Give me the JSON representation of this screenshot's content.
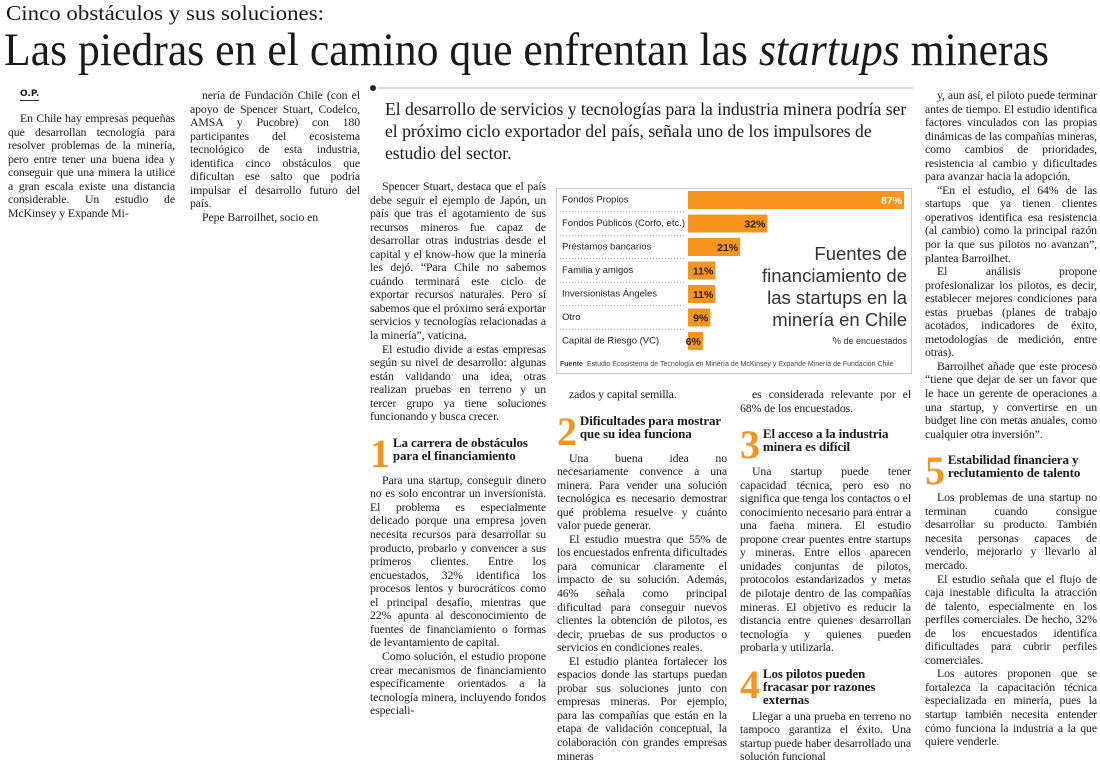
{
  "header": {
    "kicker": "Cinco obstáculos y sus soluciones:",
    "headline": {
      "start": "Las piedras en el camino que enfrentan las ",
      "emphasis": "startups",
      "end": " mineras"
    },
    "byline": "O.P.",
    "deck": "El desarrollo de servicios y tecnologías para la industria minera podría ser el próximo ciclo exportador del país, señala uno de los impulsores de estudio del sector."
  },
  "columns": [
    [
      {
        "text": "En Chile hay empresas pequeñas que desarrollan tecnología para resolver problemas de la minería, pero entre tener una buena idea y conseguir que una minera la utilice a gran escala existe una distancia considerable. Un estudio de McKinsey y Expande Mi-"
      }
    ],
    [
      {
        "text": "nería de Fundación Chile (con el apoyo de Spencer Stuart, Codelco, AMSA y Pucobre) con 180 participantes del ecosistema tecnológico de esta industria, identifica cinco obstáculos que dificultan ese salto que podría impulsar el desarrollo futuro del país."
      },
      {
        "text": "Pepe Barroilhet, socio en"
      }
    ],
    [
      {
        "text": "Spencer Stuart, destaca que el país debe seguir el ejemplo de Japón, un país que tras el agotamiento de sus recursos mineros fue capaz de desarrollar otras industrias desde el capital y el know-how que la minería les dejó. “Para Chile no sabemos cuándo terminará este ciclo de exportar recursos naturales. Pero sí sabemos que el próximo será exportar servicios y tecnologías relacionadas a la minería”, vaticina."
      },
      {
        "text": "El estudio divide a estas empresas según su nivel de desarrollo: algunas están validando una idea, otras realizan pruebas en terreno y un tercer grupo ya tiene soluciones funcionando y busca crecer."
      },
      {
        "number": "1",
        "heading": "La carrera de obstáculos para el financiamiento"
      },
      {
        "text": "Para una startup, conseguir dinero no es solo encontrar un inversionista. El problema es especialmente delicado porque una empresa joven necesita recursos para desarrollar su producto, probarlo y convencer a sus primeros clientes. Entre los encuestados, 32% identifica los procesos lentos y burocráticos como el principal desafío, mientras que 22% apunta al desconocimiento de fuentes de financiamiento o formas de levantamiento de capital."
      },
      {
        "text": "Como solución, el estudio propone crear mecanismos de financiamiento específicamente orientados a la tecnología minera, incluyendo fondos especiali-"
      }
    ],
    [
      {
        "text": "zados y capital semilla."
      },
      {
        "number": "2",
        "heading": "Dificultades para mostrar que su idea funciona"
      },
      {
        "text": "Una buena idea no necesariamente convence a una minera. Para vender una solución tecnológica es necesario demostrar qué problema resuelve y cuánto valor puede generar."
      },
      {
        "text": "El estudio muestra que 55% de los encuestados enfrenta dificultades para comunicar claramente el impacto de su solución. Además, 46% señala como principal dificultad para conseguir nuevos clientes la obtención de pilotos, es decir, pruebas de sus productos o servicios en condiciones reales."
      },
      {
        "text": "El estudio plantea fortalecer los espacios donde las startups puedan probar sus soluciones junto con empresas mineras. Por ejemplo, para las compañías que están en la etapa de validación conceptual, la colaboración con grandes empresas mineras"
      }
    ],
    [
      {
        "text": "es considerada relevante por el 68% de los encuestados."
      },
      {
        "number": "3",
        "heading": "El acceso a la industria minera es difícil"
      },
      {
        "text": "Una startup puede tener capacidad técnica, pero eso no significa que tenga los contactos o el conocimiento necesario para entrar a una faena minera. El estudio propone crear puentes entre startups y mineras. Entre ellos aparecen unidades conjuntas de pilotos, protocolos estandarizados y metas de pilotaje dentro de las compañías mineras. El objetivo es reducir la distancia entre quienes desarrollan tecnología y quienes pueden probarla y utilizarla."
      },
      {
        "number": "4",
        "heading": "Los pilotos pueden fracasar por razones externas"
      },
      {
        "text": "Llegar a una prueba en terreno no tampoco garantiza el éxito. Una startup puede haber desarrollado una solución funcional"
      }
    ],
    [
      {
        "text": "y, aun así, el piloto puede terminar antes de tiempo. El estudio identifica factores vinculados con las propias dinámicas de las compañías mineras, como cambios de prioridades, resistencia al cambio y dificultades para avanzar hacia la adopción."
      },
      {
        "text": "“En el estudio, el 64% de las startups que ya tienen clientes operativos identifica esa resistencia (al cambio) como la principal razón por la que sus pilotos no avanzan”, plantea Barroilhet."
      },
      {
        "text": "El análisis propone profesionalizar los pilotos, es decir, establecer mejores condiciones para estas pruebas (planes de trabajo acotados, indicadores de éxito, metodologías de medición, entre otras)."
      },
      {
        "text": "Barroilhet añade que este proceso “tiene que dejar de ser un favor que le hace un gerente de operaciones a una startup, y convertirse en un budget line con metas anuales, como cualquier otra inversión”."
      },
      {
        "number": "5",
        "heading": "Estabilidad financiera y reclutamiento de talento"
      },
      {
        "text": "Los problemas de una startup no terminan cuando consigue desarrollar su producto. También necesita personas capaces de venderlo, mejorarlo y llevarlo al mercado."
      },
      {
        "text": "El estudio señala que el flujo de caja inestable dificulta la atracción de talento, especialmente en los perfiles comerciales. De hecho, 32% de los encuestados identifica dificultades para cubrir perfiles comerciales."
      },
      {
        "text": "Los autores proponen que se fortalezca la capacitación técnica especializada en minería, pues la startup también necesita entender cómo funciona la industria a la que quiere venderle."
      }
    ]
  ],
  "chart_data": {
    "type": "bar",
    "title": "Fuentes de financiamiento de las startups en la minería en Chile",
    "subtitle": "% de encuestados",
    "categories": [
      "Fondos Propios",
      "Fondos Públicos (Corfo, etc.)",
      "Préstamos bancarios",
      "Familia y amigos",
      "Inversionistas Ángeles",
      "Otro",
      "Capital de Riesgo (VC)"
    ],
    "values": [
      87,
      32,
      21,
      11,
      11,
      9,
      6
    ],
    "value_labels": [
      "87%",
      "32%",
      "21%",
      "11%",
      "11%",
      "9%",
      "6%"
    ],
    "color": "#f7941d",
    "source_label": "Fuente",
    "source": "Estudio Ecosistema de Tecnología en Minería de McKinsey y Expande Minería de Fundación Chile"
  }
}
